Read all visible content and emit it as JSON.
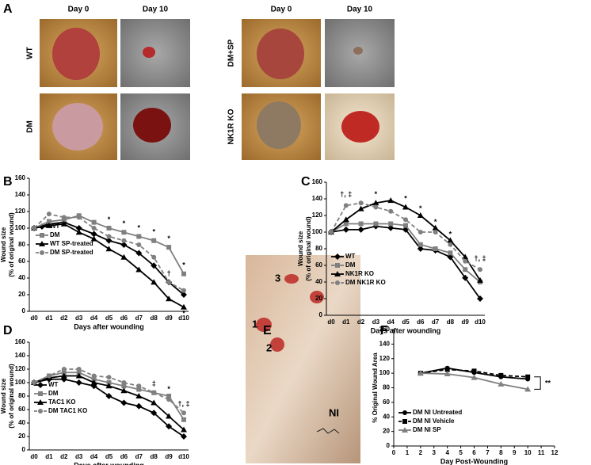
{
  "panel_labels": [
    "A",
    "B",
    "C",
    "D",
    "E",
    "F"
  ],
  "photos": {
    "column_headers": [
      "Day 0",
      "Day 10",
      "Day 0",
      "Day 10"
    ],
    "row_labels": [
      "WT",
      "DM",
      "DM+SP",
      "NK1R KO"
    ],
    "wound_labels": [
      "1",
      "2",
      "3",
      "NI"
    ]
  },
  "chart_data": [
    {
      "type": "line",
      "xlabel": "Days after wounding",
      "ylabel": [
        "Wound size",
        "(% of original wound)"
      ],
      "categories": [
        "d0",
        "d1",
        "d2",
        "d3",
        "d4",
        "d5",
        "d6",
        "d7",
        "d8",
        "d9",
        "d10"
      ],
      "ylim": [
        0,
        160
      ],
      "yticks": [
        0,
        20,
        40,
        60,
        80,
        100,
        120,
        140,
        160
      ],
      "series": [
        {
          "name": "WT",
          "color": "#000000",
          "marker": "diamond",
          "dashed": false,
          "values": [
            100,
            105,
            107,
            100,
            93,
            85,
            80,
            70,
            55,
            35,
            20
          ]
        },
        {
          "name": "DM",
          "color": "#808080",
          "marker": "square",
          "dashed": false,
          "values": [
            100,
            108,
            110,
            115,
            107,
            100,
            95,
            90,
            85,
            77,
            45
          ]
        },
        {
          "name": "WT SP-treated",
          "color": "#000000",
          "marker": "triangle",
          "dashed": false,
          "values": [
            100,
            103,
            105,
            95,
            87,
            75,
            65,
            50,
            35,
            15,
            5
          ]
        },
        {
          "name": "DM SP-treated",
          "color": "#808080",
          "marker": "circle",
          "dashed": true,
          "values": [
            100,
            117,
            113,
            113,
            100,
            90,
            85,
            80,
            65,
            35,
            25
          ]
        }
      ],
      "annotations": [
        {
          "text": "*",
          "x": 5,
          "y": 110
        },
        {
          "text": "*",
          "x": 6,
          "y": 105
        },
        {
          "text": "*",
          "x": 7,
          "y": 100
        },
        {
          "text": "*",
          "x": 8,
          "y": 95
        },
        {
          "text": "*",
          "x": 9,
          "y": 87
        },
        {
          "text": "†",
          "x": 9,
          "y": 45
        },
        {
          "text": "*",
          "x": 10,
          "y": 55
        },
        {
          "text": "*",
          "x": 10,
          "y": -3
        }
      ]
    },
    {
      "type": "line",
      "xlabel": "Days after wounding",
      "ylabel": [
        "Wound size",
        "(% of original wound)"
      ],
      "categories": [
        "d0",
        "d1",
        "d2",
        "d3",
        "d4",
        "d5",
        "d6",
        "d7",
        "d8",
        "d9",
        "d10"
      ],
      "ylim": [
        0,
        160
      ],
      "yticks": [
        0,
        20,
        40,
        60,
        80,
        100,
        120,
        140,
        160
      ],
      "series": [
        {
          "name": "WT",
          "color": "#000000",
          "marker": "diamond",
          "dashed": false,
          "values": [
            100,
            103,
            103,
            107,
            105,
            103,
            80,
            78,
            70,
            45,
            20
          ]
        },
        {
          "name": "DM",
          "color": "#808080",
          "marker": "square",
          "dashed": false,
          "values": [
            100,
            110,
            110,
            110,
            110,
            108,
            85,
            80,
            75,
            55,
            40
          ]
        },
        {
          "name": "NK1R KO",
          "color": "#000000",
          "marker": "triangle",
          "dashed": false,
          "values": [
            100,
            115,
            128,
            135,
            138,
            130,
            120,
            105,
            90,
            70,
            42
          ]
        },
        {
          "name": "DM NK1R KO",
          "color": "#808080",
          "marker": "circle",
          "dashed": true,
          "values": [
            100,
            132,
            135,
            130,
            125,
            115,
            100,
            100,
            85,
            65,
            55
          ]
        }
      ],
      "annotations": [
        {
          "text": "†, ‡",
          "x": 1,
          "y": 145
        },
        {
          "text": "*",
          "x": 3,
          "y": 145
        },
        {
          "text": "*",
          "x": 5,
          "y": 140
        },
        {
          "text": "*",
          "x": 6,
          "y": 128
        },
        {
          "text": "*",
          "x": 7,
          "y": 112
        },
        {
          "text": "*",
          "x": 8,
          "y": 97
        },
        {
          "text": "†, ‡",
          "x": 10,
          "y": 68
        }
      ]
    },
    {
      "type": "line",
      "xlabel": "Days after wounding",
      "ylabel": [
        "Wound size",
        "(% of original wound)"
      ],
      "categories": [
        "d0",
        "d1",
        "d2",
        "d3",
        "d4",
        "d5",
        "d6",
        "d7",
        "d8",
        "d9",
        "d10"
      ],
      "ylim": [
        0,
        160
      ],
      "yticks": [
        0,
        20,
        40,
        60,
        80,
        100,
        120,
        140,
        160
      ],
      "series": [
        {
          "name": "WT",
          "color": "#000000",
          "marker": "diamond",
          "dashed": false,
          "values": [
            100,
            105,
            105,
            100,
            95,
            80,
            70,
            65,
            55,
            35,
            20
          ]
        },
        {
          "name": "DM",
          "color": "#808080",
          "marker": "square",
          "dashed": false,
          "values": [
            100,
            110,
            115,
            115,
            105,
            100,
            95,
            90,
            85,
            80,
            45
          ]
        },
        {
          "name": "TAC1 KO",
          "color": "#000000",
          "marker": "triangle",
          "dashed": false,
          "values": [
            100,
            107,
            110,
            110,
            100,
            95,
            88,
            80,
            70,
            50,
            30
          ]
        },
        {
          "name": "DM TAC1 KO",
          "color": "#808080",
          "marker": "circle",
          "dashed": true,
          "values": [
            100,
            110,
            120,
            120,
            110,
            108,
            100,
            95,
            85,
            75,
            55
          ]
        }
      ],
      "annotations": [
        {
          "text": "‡",
          "x": 8,
          "y": 98
        },
        {
          "text": "*",
          "x": 9,
          "y": 90
        },
        {
          "text": "†, ‡",
          "x": 10,
          "y": 68
        }
      ]
    },
    {
      "type": "line",
      "xlabel": "Day Post-Wounding",
      "ylabel": [
        "% Original Wound Area"
      ],
      "x": [
        2,
        4,
        6,
        8,
        10
      ],
      "xlim": [
        0,
        12
      ],
      "xticks": [
        0,
        1,
        2,
        3,
        4,
        5,
        6,
        7,
        8,
        9,
        10,
        11,
        12
      ],
      "ylim": [
        0,
        160
      ],
      "yticks": [
        0,
        20,
        40,
        60,
        80,
        100,
        120,
        140,
        160
      ],
      "series": [
        {
          "name": "DM NI Untreated",
          "color": "#000000",
          "marker": "circle",
          "dashed": false,
          "values": [
            100,
            107,
            101,
            95,
            92
          ]
        },
        {
          "name": "DM NI Vehicle",
          "color": "#000000",
          "marker": "square",
          "dashed": true,
          "values": [
            100,
            105,
            103,
            97,
            95
          ]
        },
        {
          "name": "DM NI SP",
          "color": "#808080",
          "marker": "triangle",
          "dashed": false,
          "values": [
            100,
            99,
            94,
            85,
            78
          ]
        }
      ],
      "annotations": [
        {
          "text": "**",
          "x": 11.5,
          "y": 86
        }
      ]
    }
  ]
}
